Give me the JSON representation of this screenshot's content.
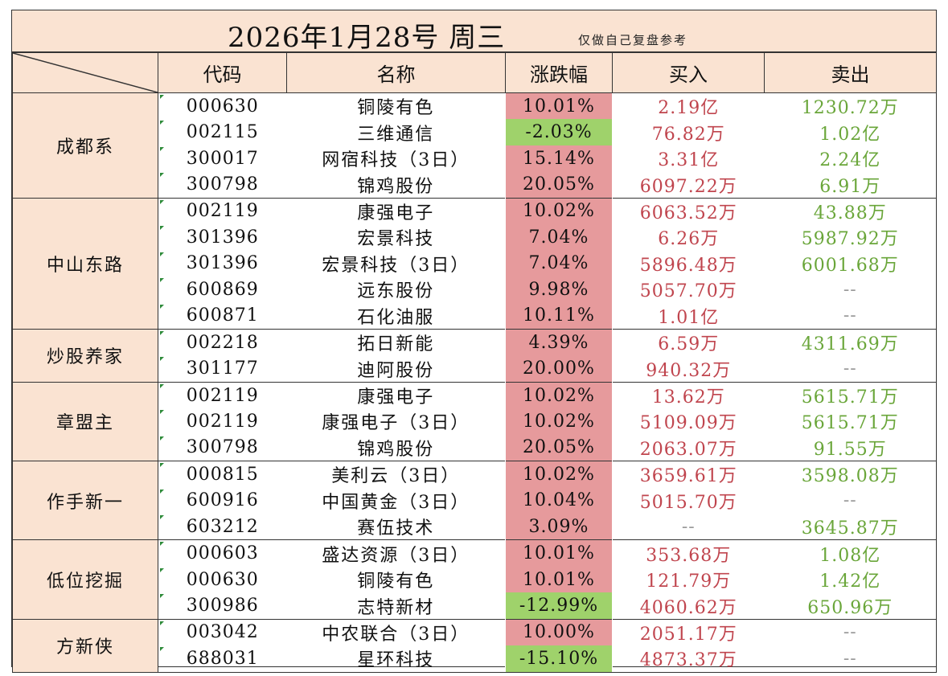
{
  "title": "2026年1月28号  周三",
  "note": "仅做自己复盘参考",
  "headers": [
    "代码",
    "名称",
    "涨跌幅",
    "买入",
    "卖出"
  ],
  "colors": {
    "header_bg": "#fae3d2",
    "up": "#e69a9c",
    "down": "#9fd26b",
    "buy_text": "#c0454e",
    "sell_text": "#6aa63a"
  },
  "groups": [
    {
      "name": "成都系",
      "rows": [
        {
          "code": "000630",
          "name": "铜陵有色",
          "change": "10.01%",
          "dir": "up",
          "buy": "2.19亿",
          "sell": "1230.72万"
        },
        {
          "code": "002115",
          "name": "三维通信",
          "change": "-2.03%",
          "dir": "down",
          "buy": "76.82万",
          "sell": "1.02亿"
        },
        {
          "code": "300017",
          "name": "网宿科技（3日）",
          "change": "15.14%",
          "dir": "up",
          "buy": "3.31亿",
          "sell": "2.24亿"
        },
        {
          "code": "300798",
          "name": "锦鸡股份",
          "change": "20.05%",
          "dir": "up",
          "buy": "6097.22万",
          "sell": "6.91万"
        }
      ]
    },
    {
      "name": "中山东路",
      "rows": [
        {
          "code": "002119",
          "name": "康强电子",
          "change": "10.02%",
          "dir": "up",
          "buy": "6063.52万",
          "sell": "43.88万"
        },
        {
          "code": "301396",
          "name": "宏景科技",
          "change": "7.04%",
          "dir": "up",
          "buy": "6.26万",
          "sell": "5987.92万"
        },
        {
          "code": "301396",
          "name": "宏景科技（3日）",
          "change": "7.04%",
          "dir": "up",
          "buy": "5896.48万",
          "sell": "6001.68万"
        },
        {
          "code": "600869",
          "name": "远东股份",
          "change": "9.98%",
          "dir": "up",
          "buy": "5057.70万",
          "sell": "--"
        },
        {
          "code": "600871",
          "name": "石化油服",
          "change": "10.11%",
          "dir": "up",
          "buy": "1.01亿",
          "sell": "--"
        }
      ]
    },
    {
      "name": "炒股养家",
      "rows": [
        {
          "code": "002218",
          "name": "拓日新能",
          "change": "4.39%",
          "dir": "up",
          "buy": "6.59万",
          "sell": "4311.69万"
        },
        {
          "code": "301177",
          "name": "迪阿股份",
          "change": "20.00%",
          "dir": "up",
          "buy": "940.32万",
          "sell": "--"
        }
      ]
    },
    {
      "name": "章盟主",
      "rows": [
        {
          "code": "002119",
          "name": "康强电子",
          "change": "10.02%",
          "dir": "up",
          "buy": "13.62万",
          "sell": "5615.71万"
        },
        {
          "code": "002119",
          "name": "康强电子（3日）",
          "change": "10.02%",
          "dir": "up",
          "buy": "5109.09万",
          "sell": "5615.71万"
        },
        {
          "code": "300798",
          "name": "锦鸡股份",
          "change": "20.05%",
          "dir": "up",
          "buy": "2063.07万",
          "sell": "91.55万"
        }
      ]
    },
    {
      "name": "作手新一",
      "rows": [
        {
          "code": "000815",
          "name": "美利云（3日）",
          "change": "10.02%",
          "dir": "up",
          "buy": "3659.61万",
          "sell": "3598.08万"
        },
        {
          "code": "600916",
          "name": "中国黄金（3日）",
          "change": "10.04%",
          "dir": "up",
          "buy": "5015.70万",
          "sell": "--"
        },
        {
          "code": "603212",
          "name": "赛伍技术",
          "change": "3.09%",
          "dir": "up",
          "buy": "--",
          "sell": "3645.87万"
        }
      ]
    },
    {
      "name": "低位挖掘",
      "rows": [
        {
          "code": "000603",
          "name": "盛达资源（3日）",
          "change": "10.01%",
          "dir": "up",
          "buy": "353.68万",
          "sell": "1.08亿"
        },
        {
          "code": "000630",
          "name": "铜陵有色",
          "change": "10.01%",
          "dir": "up",
          "buy": "121.79万",
          "sell": "1.42亿"
        },
        {
          "code": "300986",
          "name": "志特新材",
          "change": "-12.99%",
          "dir": "down",
          "buy": "4060.62万",
          "sell": "650.96万"
        }
      ]
    },
    {
      "name": "方新侠",
      "rows": [
        {
          "code": "003042",
          "name": "中农联合（3日）",
          "change": "10.00%",
          "dir": "up",
          "buy": "2051.17万",
          "sell": "--"
        },
        {
          "code": "688031",
          "name": "星环科技",
          "change": "-15.10%",
          "dir": "down",
          "buy": "4873.37万",
          "sell": "--"
        }
      ]
    }
  ]
}
